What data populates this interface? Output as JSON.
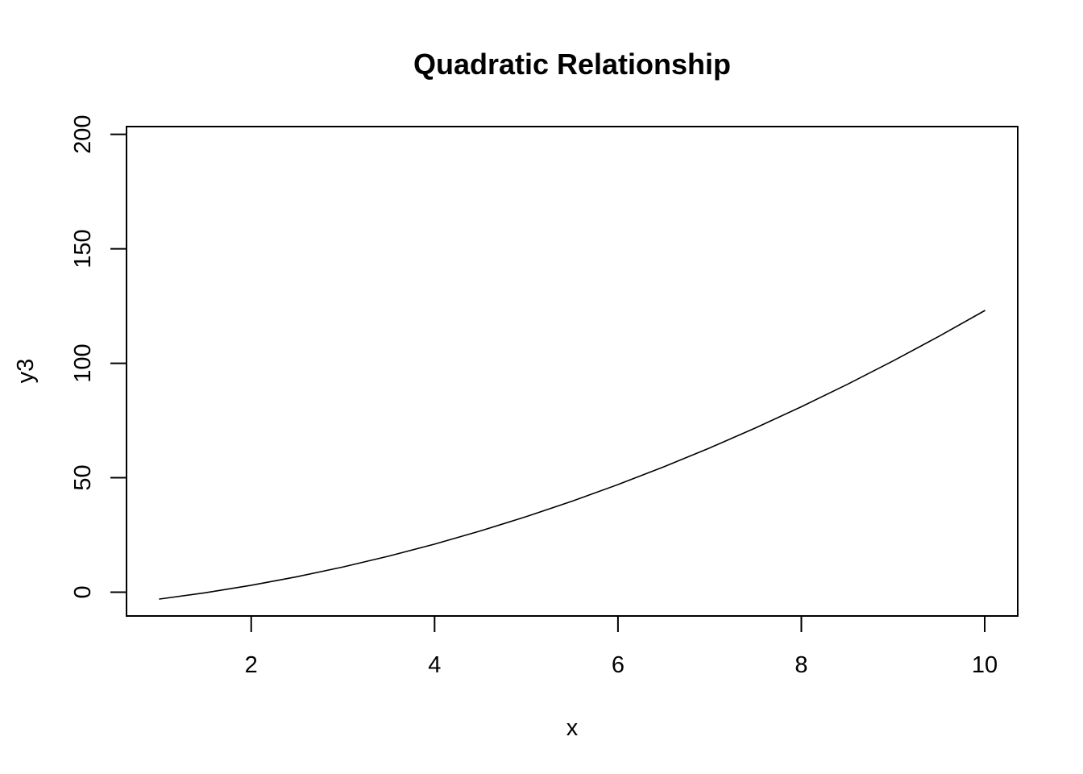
{
  "chart_data": {
    "type": "line",
    "title": "Quadratic Relationship",
    "xlabel": "x",
    "ylabel": "y3",
    "xlim": [
      0.64,
      10.36
    ],
    "ylim": [
      -10.4,
      203.4
    ],
    "x_ticks": [
      2,
      4,
      6,
      8,
      10
    ],
    "y_ticks": [
      0,
      50,
      100,
      150,
      200
    ],
    "x_tick_labels": [
      "2",
      "4",
      "6",
      "8",
      "10"
    ],
    "y_tick_labels": [
      "0",
      "50",
      "100",
      "150",
      "200"
    ],
    "grid": false,
    "legend": "none",
    "line_color": "#000000",
    "series": [
      {
        "x": [
          1,
          1.5,
          2,
          2.5,
          3,
          3.5,
          4,
          4.5,
          5,
          5.5,
          6,
          6.5,
          7,
          7.5,
          8,
          8.5,
          9,
          9.5,
          10
        ],
        "values": [
          -3,
          -0.25,
          3,
          6.75,
          11,
          15.75,
          21,
          26.75,
          33,
          39.75,
          47,
          54.75,
          63,
          71.75,
          81,
          90.75,
          101,
          111.75,
          123
        ]
      }
    ]
  }
}
